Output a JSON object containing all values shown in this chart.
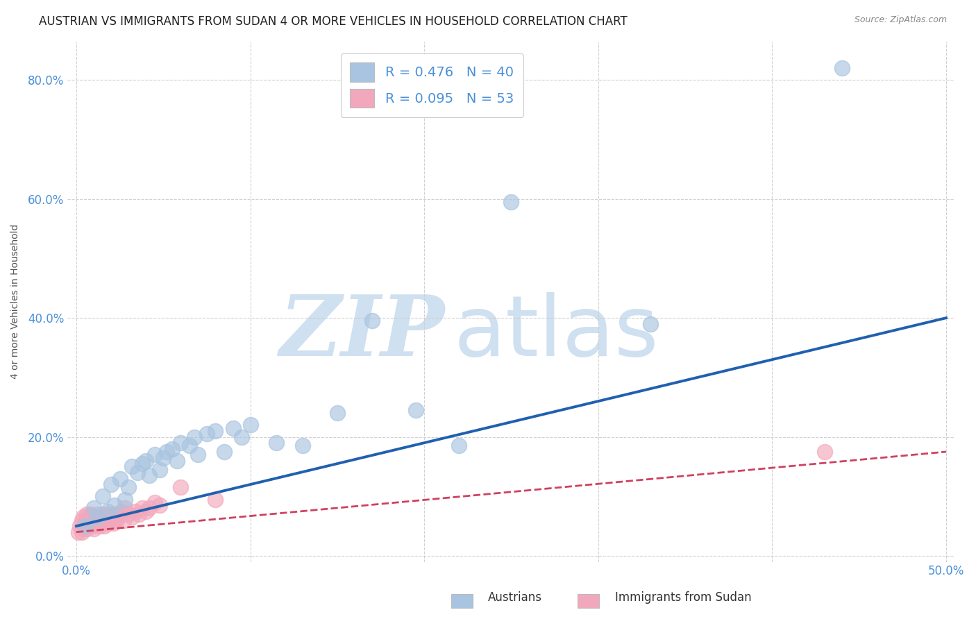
{
  "title": "AUSTRIAN VS IMMIGRANTS FROM SUDAN 4 OR MORE VEHICLES IN HOUSEHOLD CORRELATION CHART",
  "source": "Source: ZipAtlas.com",
  "ylabel": "4 or more Vehicles in Household",
  "xlabel": "",
  "xlim": [
    -0.005,
    0.505
  ],
  "ylim": [
    -0.01,
    0.865
  ],
  "xtick_labels": [
    "0.0%",
    "50.0%"
  ],
  "xtick_vals": [
    0.0,
    0.5
  ],
  "ytick_labels": [
    "0.0%",
    "20.0%",
    "40.0%",
    "60.0%",
    "80.0%"
  ],
  "ytick_vals": [
    0.0,
    0.2,
    0.4,
    0.6,
    0.8
  ],
  "xgrid_vals": [
    0.0,
    0.1,
    0.2,
    0.3,
    0.4,
    0.5
  ],
  "legend_R_austrians": "0.476",
  "legend_N_austrians": "40",
  "legend_R_sudan": "0.095",
  "legend_N_sudan": "53",
  "austrians_color": "#a8c4e0",
  "sudan_color": "#f2a8bc",
  "trendline_austrians_color": "#2060b0",
  "trendline_sudan_color": "#d04060",
  "background_color": "#ffffff",
  "watermark_color": "#cfe0f0",
  "legend_label_austrians": "Austrians",
  "legend_label_sudan": "Immigrants from Sudan",
  "austrians_x": [
    0.005,
    0.01,
    0.012,
    0.015,
    0.018,
    0.02,
    0.022,
    0.025,
    0.028,
    0.03,
    0.032,
    0.035,
    0.038,
    0.04,
    0.042,
    0.045,
    0.048,
    0.05,
    0.052,
    0.055,
    0.058,
    0.06,
    0.065,
    0.068,
    0.07,
    0.075,
    0.08,
    0.085,
    0.09,
    0.095,
    0.1,
    0.115,
    0.13,
    0.15,
    0.17,
    0.195,
    0.22,
    0.25,
    0.33,
    0.44
  ],
  "austrians_y": [
    0.05,
    0.08,
    0.065,
    0.1,
    0.075,
    0.12,
    0.085,
    0.13,
    0.095,
    0.115,
    0.15,
    0.14,
    0.155,
    0.16,
    0.135,
    0.17,
    0.145,
    0.165,
    0.175,
    0.18,
    0.16,
    0.19,
    0.185,
    0.2,
    0.17,
    0.205,
    0.21,
    0.175,
    0.215,
    0.2,
    0.22,
    0.19,
    0.185,
    0.24,
    0.395,
    0.245,
    0.185,
    0.595,
    0.39,
    0.82
  ],
  "sudan_x": [
    0.001,
    0.002,
    0.003,
    0.003,
    0.004,
    0.004,
    0.005,
    0.005,
    0.006,
    0.006,
    0.007,
    0.007,
    0.008,
    0.008,
    0.009,
    0.009,
    0.01,
    0.01,
    0.01,
    0.012,
    0.012,
    0.013,
    0.013,
    0.014,
    0.015,
    0.015,
    0.016,
    0.016,
    0.017,
    0.018,
    0.018,
    0.019,
    0.02,
    0.021,
    0.022,
    0.023,
    0.024,
    0.025,
    0.026,
    0.027,
    0.028,
    0.03,
    0.032,
    0.034,
    0.036,
    0.038,
    0.04,
    0.042,
    0.045,
    0.048,
    0.06,
    0.08,
    0.43
  ],
  "sudan_y": [
    0.04,
    0.05,
    0.04,
    0.06,
    0.045,
    0.065,
    0.05,
    0.06,
    0.045,
    0.07,
    0.05,
    0.065,
    0.055,
    0.07,
    0.05,
    0.06,
    0.045,
    0.055,
    0.065,
    0.06,
    0.07,
    0.05,
    0.065,
    0.055,
    0.06,
    0.07,
    0.05,
    0.065,
    0.06,
    0.055,
    0.07,
    0.06,
    0.065,
    0.055,
    0.07,
    0.06,
    0.065,
    0.07,
    0.075,
    0.06,
    0.08,
    0.07,
    0.065,
    0.075,
    0.07,
    0.08,
    0.075,
    0.08,
    0.09,
    0.085,
    0.115,
    0.095,
    0.175
  ],
  "grid_color": "#cccccc",
  "title_fontsize": 12,
  "axis_label_fontsize": 10,
  "tick_fontsize": 12,
  "legend_fontsize": 14
}
